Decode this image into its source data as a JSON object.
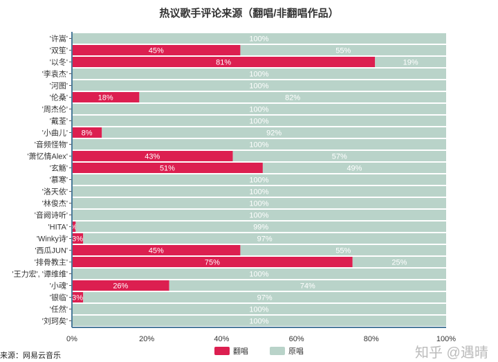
{
  "chart_data": {
    "type": "bar",
    "stacked": true,
    "orientation": "horizontal",
    "title": "热议歌手评论来源（翻唱/非翻唱作品）",
    "categories": [
      "'许嵩'",
      "'双笙'",
      "'以冬'",
      "'李袁杰'",
      "'河图'",
      "'伦桑'",
      "'周杰伦'",
      "'戴荃'",
      "'小曲儿'",
      "'音频怪物'",
      "'萧忆情Alex'",
      "'玄觞'",
      "'慕寒'",
      "'洛天依'",
      "'林俊杰'",
      "'音阙诗听'",
      "'HITA'",
      "'Winky诗'",
      "'西瓜JUN'",
      "'排骨教主'",
      "'王力宏', '谭维维'",
      "'小魂'",
      "'银临'",
      "'任然'",
      "'刘珂矣'"
    ],
    "series": [
      {
        "name": "翻唱",
        "color": "#dc1f50",
        "values": [
          0,
          45,
          81,
          0,
          0,
          18,
          0,
          0,
          8,
          0,
          43,
          51,
          0,
          0,
          0,
          0,
          1,
          3,
          45,
          75,
          0,
          26,
          3,
          0,
          0
        ]
      },
      {
        "name": "原唱",
        "color": "#b9d3c9",
        "values": [
          100,
          55,
          19,
          100,
          100,
          82,
          100,
          100,
          92,
          100,
          57,
          49,
          100,
          100,
          100,
          100,
          99,
          97,
          55,
          25,
          100,
          74,
          97,
          100,
          100
        ]
      }
    ],
    "xticks": [
      "0%",
      "20%",
      "40%",
      "60%",
      "80%",
      "100%"
    ],
    "xlim": [
      0,
      100
    ],
    "legend": "bottom-center"
  },
  "source": "来源：网易云音乐",
  "watermark": "知乎 @遇晴"
}
